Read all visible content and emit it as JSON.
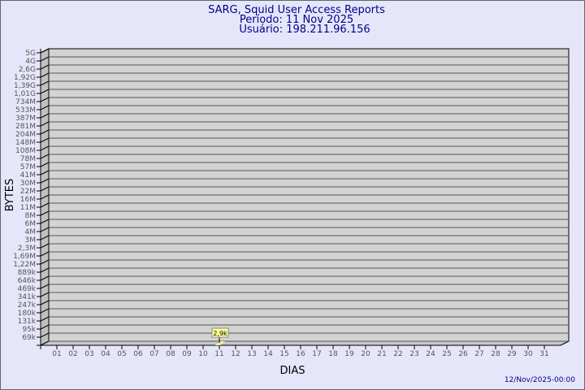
{
  "chart_data": {
    "type": "bar",
    "title": "SARG, Squid User Access Reports",
    "subtitle_period": "Período: 11 Nov 2025",
    "subtitle_user": "Usuário: 198.211.96.156",
    "xlabel": "DIAS",
    "ylabel": "BYTES",
    "categories": [
      "01",
      "02",
      "03",
      "04",
      "05",
      "06",
      "07",
      "08",
      "09",
      "10",
      "11",
      "12",
      "13",
      "14",
      "15",
      "16",
      "17",
      "18",
      "19",
      "20",
      "21",
      "22",
      "23",
      "24",
      "25",
      "26",
      "27",
      "28",
      "29",
      "30",
      "31"
    ],
    "y_ticks": [
      "5G",
      "4G",
      "2,6G",
      "1,92G",
      "1,39G",
      "1,01G",
      "734M",
      "533M",
      "387M",
      "281M",
      "204M",
      "148M",
      "108M",
      "78M",
      "57M",
      "41M",
      "30M",
      "22M",
      "16M",
      "11M",
      "8M",
      "6M",
      "4M",
      "3M",
      "2,3M",
      "1,69M",
      "1,22M",
      "889k",
      "646k",
      "469k",
      "341k",
      "247k",
      "180k",
      "131k",
      "95k",
      "69k"
    ],
    "y_scale": "log",
    "grid": true,
    "series": [
      {
        "values": [
          null,
          null,
          null,
          null,
          null,
          null,
          null,
          null,
          null,
          null,
          2900,
          null,
          null,
          null,
          null,
          null,
          null,
          null,
          null,
          null,
          null,
          null,
          null,
          null,
          null,
          null,
          null,
          null,
          null,
          null,
          null
        ]
      }
    ],
    "data_labels": [
      {
        "day": "11",
        "label": "2,9k"
      }
    ],
    "footer": "12/Nov/2025-00:00",
    "colors": {
      "background": "#e6e6fa",
      "wall": "#d3d3d3",
      "bar": "#ffe9a0",
      "label_bg": "#ffff99",
      "text": "#00008b"
    }
  }
}
